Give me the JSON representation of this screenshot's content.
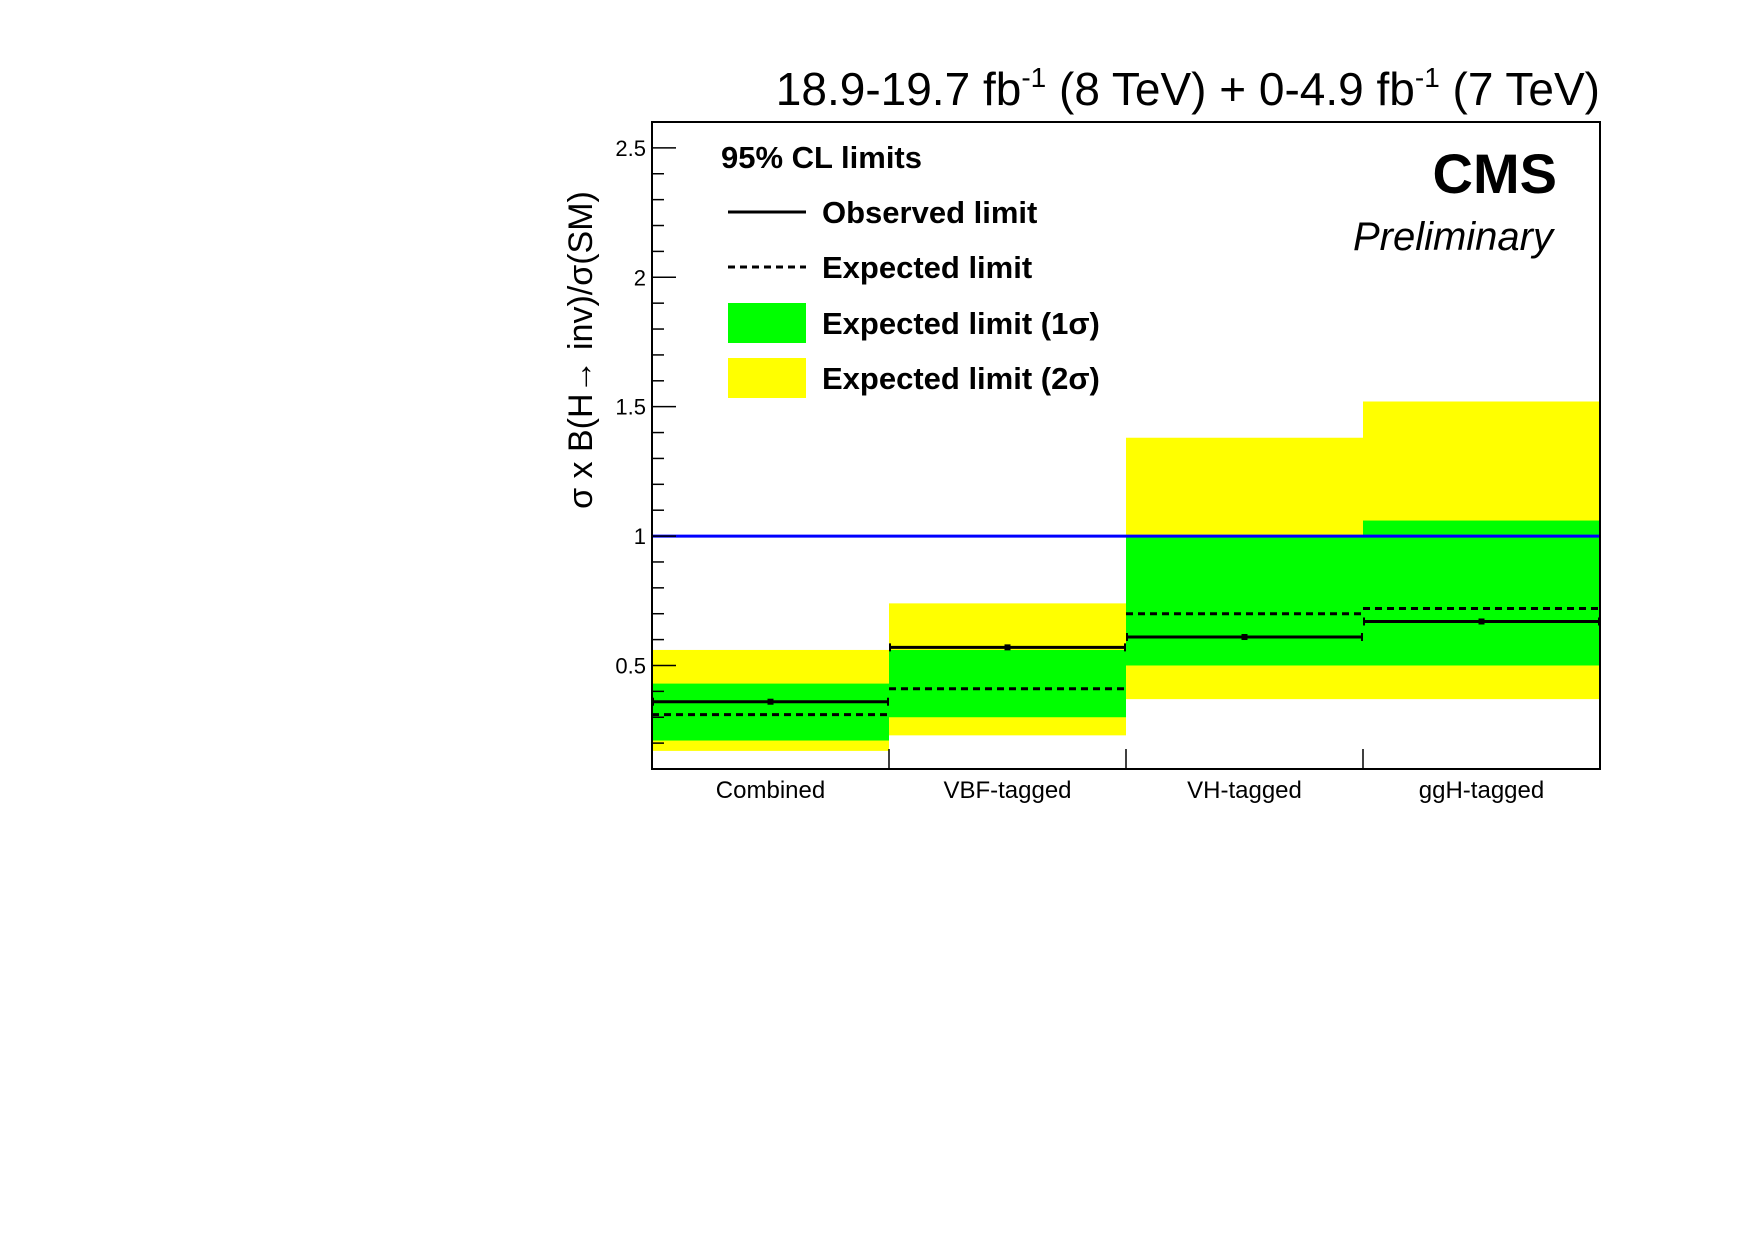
{
  "header": {
    "lumi_parts": [
      "18.9-19.7 fb",
      "-1",
      " (8 TeV) + 0-4.9 fb",
      "-1",
      " (7 TeV)"
    ],
    "experiment": "CMS",
    "status": "Preliminary"
  },
  "legend": {
    "title": "95% CL limits",
    "entries": [
      {
        "label": "Observed limit",
        "style": "solid-line"
      },
      {
        "label": "Expected limit",
        "style": "dashed-line"
      },
      {
        "label": "Expected limit (1σ)",
        "style": "green-box"
      },
      {
        "label": "Expected limit (2σ)",
        "style": "yellow-box"
      }
    ]
  },
  "colors": {
    "band_1sigma": "#00ff00",
    "band_2sigma": "#ffff00",
    "sm_line": "#0000ff",
    "lines": "#000000"
  },
  "chart_data": {
    "type": "bar",
    "ylabel": "σ x B(H→ inv)/σ(SM)",
    "xlabel": "",
    "ylim": [
      0.1,
      2.6
    ],
    "yticks": [
      0.5,
      1,
      1.5,
      2,
      2.5
    ],
    "ytick_labels": [
      "0.5",
      "1",
      "1.5",
      "2",
      "2.5"
    ],
    "categories": [
      "Combined",
      "VBF-tagged",
      "VH-tagged",
      "ggH-tagged"
    ],
    "observed": [
      0.36,
      0.57,
      0.61,
      0.67
    ],
    "expected": [
      0.31,
      0.41,
      0.7,
      0.72
    ],
    "band_1sigma_low": [
      0.21,
      0.3,
      0.5,
      0.5
    ],
    "band_1sigma_high": [
      0.43,
      0.56,
      1.0,
      1.06
    ],
    "band_2sigma_low": [
      0.17,
      0.23,
      0.37,
      0.37
    ],
    "band_2sigma_high": [
      0.56,
      0.74,
      1.38,
      1.52
    ],
    "reference_line": 1.0,
    "grid": false,
    "legend_position": "top-left"
  }
}
